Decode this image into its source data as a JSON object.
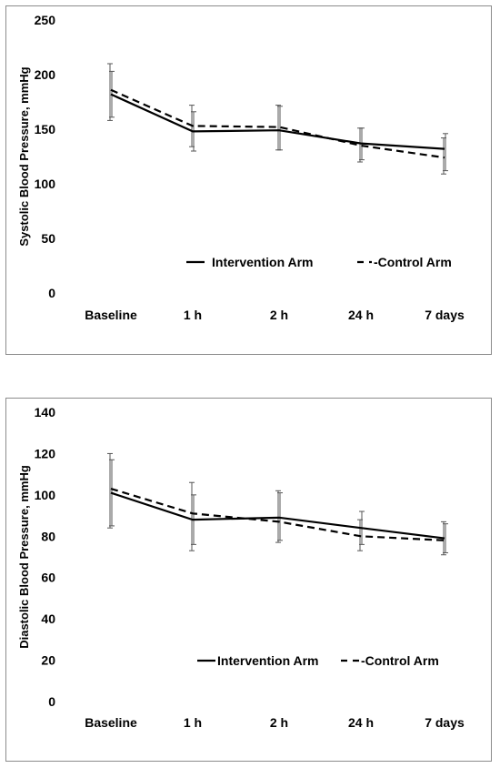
{
  "chart_data": [
    {
      "type": "line",
      "ylabel": "Systolic Blood Pressure, mmHg",
      "xlabel": "",
      "categories": [
        "Baseline",
        "1 h",
        "2 h",
        "24 h",
        "7 days"
      ],
      "yticks": [
        "0",
        "50",
        "100",
        "150",
        "200",
        "250"
      ],
      "ylim": [
        0,
        250
      ],
      "grid": false,
      "legend_position": "lower-center",
      "series": [
        {
          "name": "Intervention Arm",
          "style": "solid",
          "color": "#000000",
          "values": [
            182,
            148,
            149,
            137,
            132
          ],
          "error_low": [
            161,
            130,
            131,
            122,
            112
          ],
          "error_high": [
            203,
            166,
            171,
            151,
            146
          ]
        },
        {
          "name": "-Control Arm",
          "style": "dashed",
          "color": "#000000",
          "values": [
            186,
            153,
            152,
            135,
            124
          ],
          "error_low": [
            158,
            134,
            131,
            120,
            109
          ],
          "error_high": [
            210,
            172,
            172,
            151,
            142
          ]
        }
      ]
    },
    {
      "type": "line",
      "ylabel": "Diastolic Blood Pressure, mmHg",
      "xlabel": "",
      "categories": [
        "Baseline",
        "1 h",
        "2 h",
        "24 h",
        "7 days"
      ],
      "yticks": [
        "0",
        "20",
        "40",
        "60",
        "80",
        "100",
        "120",
        "140"
      ],
      "ylim": [
        0,
        140
      ],
      "grid": false,
      "legend_position": "lower-center",
      "series": [
        {
          "name": "Intervention Arm",
          "style": "solid",
          "color": "#000000",
          "values": [
            101,
            88,
            89,
            84,
            79
          ],
          "error_low": [
            85,
            76,
            78,
            76,
            72
          ],
          "error_high": [
            117,
            100,
            101,
            92,
            86
          ]
        },
        {
          "name": "-Control Arm",
          "style": "dashed",
          "color": "#000000",
          "values": [
            103,
            91,
            87,
            80,
            78
          ],
          "error_low": [
            84,
            73,
            77,
            73,
            71
          ],
          "error_high": [
            120,
            106,
            102,
            88,
            87
          ]
        }
      ]
    }
  ]
}
